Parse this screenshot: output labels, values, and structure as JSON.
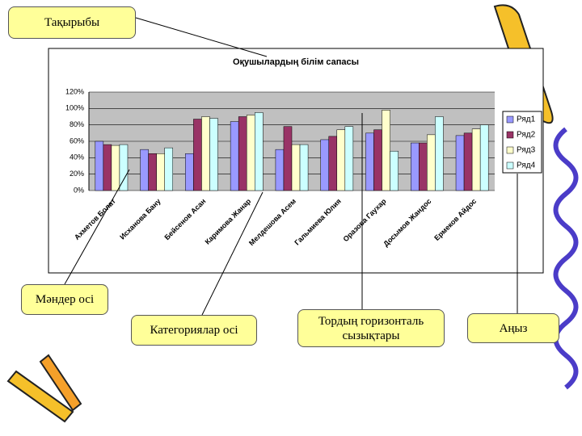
{
  "chart_data": {
    "type": "bar",
    "title": "Оқушылардың білім сапасы",
    "categories": [
      "Ахметов Болат",
      "Исханова Бану",
      "Бейсенов Асан",
      "Каримова Жанар",
      "Мелдешова Асем",
      "Гальмиева Юлия",
      "Оразова Гаухар",
      "Досымов Жандос",
      "Ермеков Айдос"
    ],
    "series": [
      {
        "name": "Ряд1",
        "color": "#9999ff",
        "values": [
          60,
          50,
          45,
          84,
          50,
          62,
          70,
          58,
          67
        ]
      },
      {
        "name": "Ряд2",
        "color": "#993366",
        "values": [
          56,
          45,
          87,
          90,
          78,
          66,
          74,
          58,
          70
        ]
      },
      {
        "name": "Ряд3",
        "color": "#ffffcc",
        "values": [
          55,
          45,
          90,
          92,
          56,
          74,
          98,
          68,
          75
        ]
      },
      {
        "name": "Ряд4",
        "color": "#ccffff",
        "values": [
          56,
          52,
          88,
          95,
          56,
          78,
          48,
          90,
          80
        ]
      }
    ],
    "ylim": [
      0,
      120
    ],
    "yticks": [
      {
        "value": 0,
        "label": "0%"
      },
      {
        "value": 20,
        "label": "20%"
      },
      {
        "value": 40,
        "label": "40%"
      },
      {
        "value": 60,
        "label": "60%"
      },
      {
        "value": 80,
        "label": "80%"
      },
      {
        "value": 100,
        "label": "100%"
      },
      {
        "value": 120,
        "label": "120%"
      }
    ],
    "grid": true,
    "legend": "right"
  },
  "callouts": [
    "Тақырыбы",
    "Мәндер осі",
    "Категориялар осі",
    "Тордың горизонталь сызықтары",
    "Аңыз"
  ]
}
